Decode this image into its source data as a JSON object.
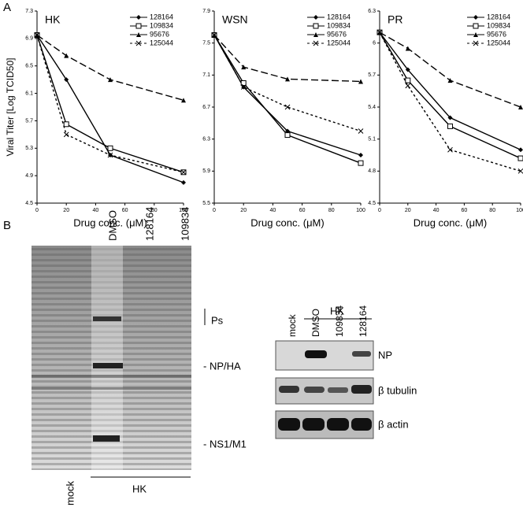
{
  "panel_labels": [
    "A",
    "B"
  ],
  "chart_data": [
    {
      "type": "line",
      "title": "HK",
      "ylabel": "Viral Titer [Log TCID50]",
      "xlabel": "Drug conc. (μM)",
      "x": [
        0,
        20,
        50,
        100
      ],
      "xlim": [
        0,
        100
      ],
      "xticks": [
        0,
        20,
        40,
        60,
        80,
        100
      ],
      "ylim": [
        4.5,
        7.3
      ],
      "yticks": [
        4.5,
        4.9,
        5.3,
        5.7,
        6.1,
        6.5,
        6.9,
        7.3
      ],
      "legend": "upper right",
      "series": [
        {
          "name": "128164",
          "color": "#000000",
          "marker": "diamond",
          "linestyle": "solid",
          "values": [
            6.95,
            6.3,
            5.2,
            4.8
          ]
        },
        {
          "name": "109834",
          "color": "#000000",
          "marker": "open-square",
          "linestyle": "solid",
          "values": [
            6.95,
            5.65,
            5.3,
            4.95
          ]
        },
        {
          "name": "95676",
          "color": "#000000",
          "marker": "triangle",
          "linestyle": "long-dash",
          "values": [
            6.95,
            6.65,
            6.3,
            6.0
          ]
        },
        {
          "name": "125044",
          "color": "#000000",
          "marker": "x",
          "linestyle": "short-dash",
          "values": [
            6.95,
            5.5,
            5.2,
            4.95
          ]
        }
      ]
    },
    {
      "type": "line",
      "title": "WSN",
      "xlabel": "Drug conc. (μM)",
      "x": [
        0,
        20,
        50,
        100
      ],
      "xlim": [
        0,
        100
      ],
      "xticks": [
        0,
        20,
        40,
        60,
        80,
        100
      ],
      "ylim": [
        5.5,
        7.9
      ],
      "yticks": [
        5.5,
        5.9,
        6.3,
        6.7,
        7.1,
        7.5,
        7.9
      ],
      "legend": "upper right",
      "series": [
        {
          "name": "128164",
          "color": "#000000",
          "marker": "diamond",
          "linestyle": "solid",
          "values": [
            7.6,
            6.95,
            6.4,
            6.1
          ]
        },
        {
          "name": "109834",
          "color": "#000000",
          "marker": "open-square",
          "linestyle": "solid",
          "values": [
            7.6,
            7.0,
            6.35,
            6.0
          ]
        },
        {
          "name": "95676",
          "color": "#000000",
          "marker": "triangle",
          "linestyle": "long-dash",
          "values": [
            7.6,
            7.2,
            7.05,
            7.02
          ]
        },
        {
          "name": "125044",
          "color": "#000000",
          "marker": "x",
          "linestyle": "short-dash",
          "values": [
            7.6,
            6.95,
            6.7,
            6.4
          ]
        }
      ]
    },
    {
      "type": "line",
      "title": "PR",
      "xlabel": "Drug conc. (μM)",
      "x": [
        0,
        20,
        50,
        100
      ],
      "xlim": [
        0,
        100
      ],
      "xticks": [
        0,
        20,
        40,
        60,
        80,
        100
      ],
      "ylim": [
        4.5,
        6.3
      ],
      "yticks": [
        4.5,
        4.8,
        5.1,
        5.4,
        5.7,
        6,
        6.3
      ],
      "legend": "upper right",
      "series": [
        {
          "name": "128164",
          "color": "#000000",
          "marker": "diamond",
          "linestyle": "solid",
          "values": [
            6.1,
            5.75,
            5.3,
            5.0
          ]
        },
        {
          "name": "109834",
          "color": "#000000",
          "marker": "open-square",
          "linestyle": "solid",
          "values": [
            6.1,
            5.65,
            5.22,
            4.92
          ]
        },
        {
          "name": "95676",
          "color": "#000000",
          "marker": "triangle",
          "linestyle": "long-dash",
          "values": [
            6.1,
            5.95,
            5.65,
            5.4
          ]
        },
        {
          "name": "125044",
          "color": "#000000",
          "marker": "x",
          "linestyle": "short-dash",
          "values": [
            6.1,
            5.6,
            5.0,
            4.8
          ]
        }
      ]
    }
  ],
  "gel": {
    "lanes": [
      "DMSO",
      "128164",
      "109834"
    ],
    "mock": "mock",
    "group": "HK",
    "markers": [
      "Ps",
      "- NP/HA",
      "- NS1/M1"
    ]
  },
  "western_blot": {
    "group": "HK",
    "lanes": [
      "mock",
      "DMSO",
      "109834",
      "128164"
    ],
    "rows": [
      "NP",
      "β tubulin",
      "β actin"
    ]
  }
}
